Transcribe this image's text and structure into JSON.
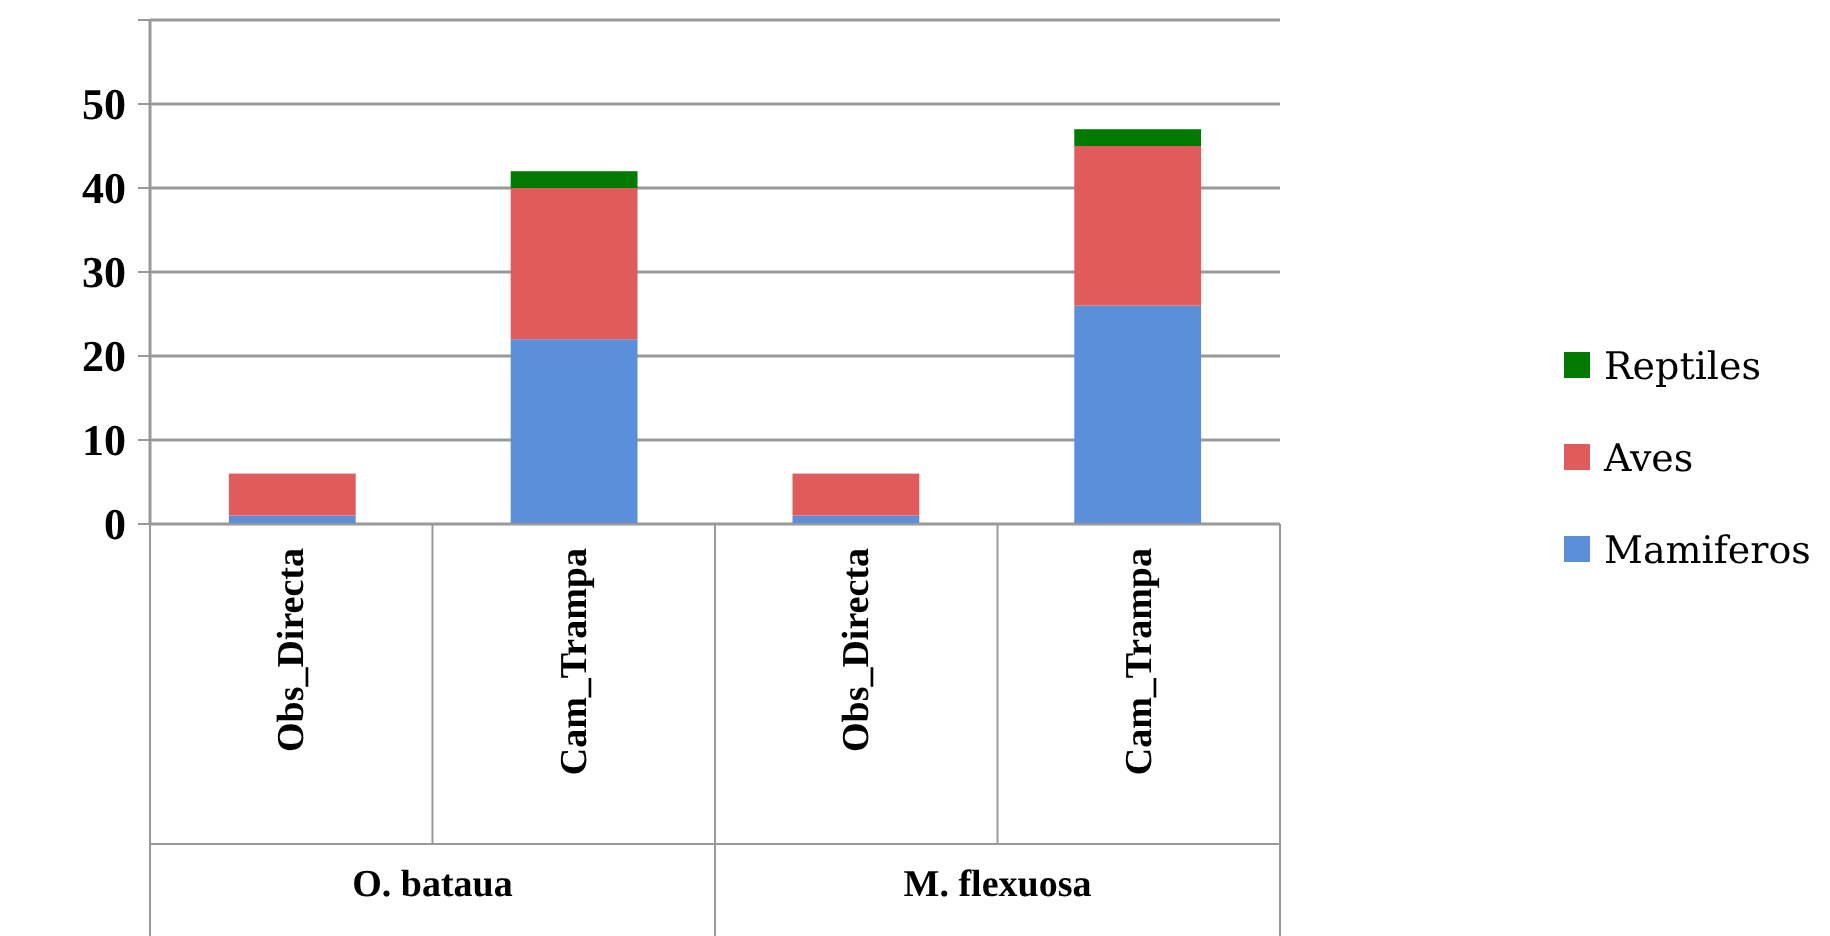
{
  "chart_data": {
    "type": "bar",
    "stacked": true,
    "categories": [
      "Obs_Directa",
      "Cam_Trampa",
      "Obs_Directa",
      "Cam_Trampa"
    ],
    "series": [
      {
        "name": "Mamiferos",
        "color": "#5b8fd9",
        "values": [
          1,
          22,
          1,
          26
        ]
      },
      {
        "name": "Aves",
        "color": "#e05c5c",
        "values": [
          5,
          18,
          5,
          19
        ]
      },
      {
        "name": "Reptiles",
        "color": "#007a00",
        "values": [
          0,
          2,
          0,
          2
        ]
      }
    ],
    "ylim": [
      0,
      60
    ],
    "yticks": [
      0,
      10,
      20,
      30,
      40,
      50,
      {
        "value": 60,
        "label": null
      }
    ],
    "grid": "y",
    "legend": "right",
    "annotations": [
      "O. bataua",
      "M. flexuosa"
    ]
  }
}
